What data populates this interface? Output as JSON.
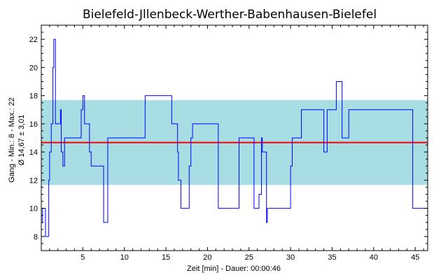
{
  "chart_data": {
    "type": "line",
    "title": "Bielefeld-Jllenbeck-Werther-Babenhausen-Bielefel",
    "xlabel": "Zeit [min] - Dauer: 00:00:46",
    "ylabel_line1": "Gang - Min.: 8 - Max.: 22",
    "ylabel_line2": "Ø 14,67 ± 3,01",
    "xlim": [
      0,
      46.5
    ],
    "ylim": [
      7,
      23
    ],
    "x_ticks": [
      5,
      10,
      15,
      20,
      25,
      30,
      35,
      40,
      45
    ],
    "y_ticks": [
      8,
      10,
      12,
      14,
      16,
      18,
      20,
      22
    ],
    "x_tick_labels": [
      "5",
      "10",
      "15",
      "20",
      "25",
      "30",
      "35",
      "40",
      "45"
    ],
    "y_tick_labels": [
      "8",
      "10",
      "12",
      "14",
      "16",
      "18",
      "20",
      "22"
    ],
    "mean": 14.67,
    "std": 3.01,
    "band": [
      11.66,
      17.68
    ],
    "colors": {
      "line": "#0000ff",
      "mean_line": "#ff0000",
      "band": "#a8dde4",
      "axis": "#000000"
    },
    "series": [
      {
        "x": [
          0,
          0.15,
          0.15,
          0.5,
          0.5,
          0.9,
          0.9,
          1.0,
          1.0,
          1.2,
          1.2,
          1.4,
          1.4,
          1.5,
          1.5,
          1.7,
          1.7,
          2.3,
          2.3,
          2.4,
          2.4,
          2.6,
          2.6,
          2.8,
          2.8,
          4.8,
          4.8,
          5.0,
          5.0,
          5.2,
          5.2,
          5.8,
          5.8,
          6.0,
          6.0,
          6.2,
          6.2,
          7.5,
          7.5,
          8.0,
          8.0,
          12.5,
          12.5,
          15.7,
          15.7,
          16.4,
          16.4,
          16.5,
          16.5,
          16.8,
          16.8,
          17.8,
          17.8,
          18.0,
          18.0,
          18.2,
          18.2,
          21.3,
          21.3,
          23.8,
          23.8,
          25.6,
          25.6,
          26.2,
          26.2,
          26.5,
          26.5,
          26.6,
          26.6,
          27.1,
          27.1,
          27.2,
          27.2,
          30.0,
          30.0,
          30.2,
          30.2,
          31.3,
          31.3,
          34.0,
          34.0,
          34.4,
          34.4,
          35.5,
          35.5,
          36.2,
          36.2,
          37.0,
          37.0,
          44.7,
          44.7,
          46.5
        ],
        "y": [
          9,
          9,
          10,
          10,
          8,
          8,
          12,
          12,
          14,
          14,
          16,
          16,
          20,
          20,
          22,
          22,
          16,
          16,
          17,
          17,
          14,
          14,
          13,
          13,
          15,
          15,
          17,
          17,
          18,
          18,
          16,
          16,
          14,
          14,
          13,
          13,
          13,
          13,
          9,
          9,
          15,
          15,
          18,
          18,
          16,
          16,
          14,
          14,
          12,
          12,
          10,
          10,
          13,
          13,
          15,
          15,
          16,
          16,
          10,
          10,
          15,
          15,
          10,
          10,
          11,
          11,
          15,
          15,
          14,
          14,
          9,
          9,
          10,
          10,
          13,
          13,
          15,
          15,
          17,
          17,
          14,
          14,
          17,
          17,
          19,
          19,
          15,
          15,
          17,
          17,
          10,
          10
        ]
      }
    ],
    "grid": false
  }
}
